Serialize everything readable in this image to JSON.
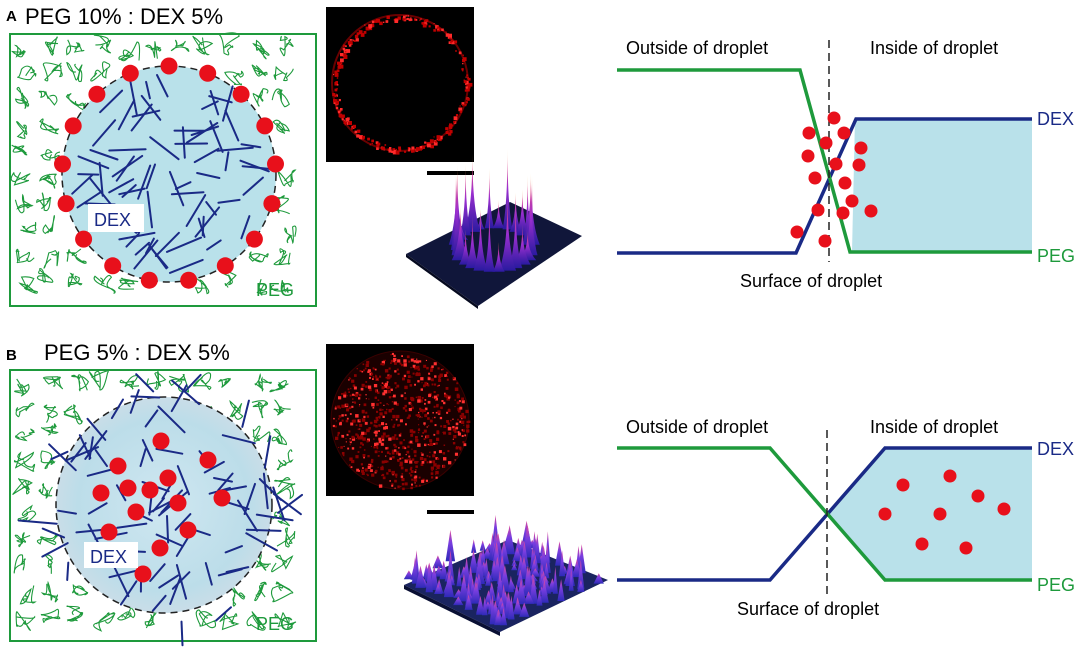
{
  "panel_a": {
    "letter": "A",
    "title": "PEG 10% : DEX 5%",
    "dex_label": "DEX",
    "peg_label": "PEG",
    "graph": {
      "outside_label": "Outside of droplet",
      "inside_label": "Inside of droplet",
      "surface_label": "Surface of droplet",
      "dex_line_label": "DEX",
      "peg_line_label": "PEG"
    }
  },
  "panel_b": {
    "letter": "B",
    "title": "PEG 5% : DEX 5%",
    "dex_label": "DEX",
    "peg_label": "PEG",
    "graph": {
      "outside_label": "Outside of droplet",
      "inside_label": "Inside of droplet",
      "surface_label": "Surface of droplet",
      "dex_line_label": "DEX",
      "peg_line_label": "PEG"
    }
  },
  "colors": {
    "peg_green": "#1e9a3c",
    "dex_navy": "#1a2a86",
    "droplet_blue": "#b9e1ea",
    "particle_red": "#e8101b"
  }
}
